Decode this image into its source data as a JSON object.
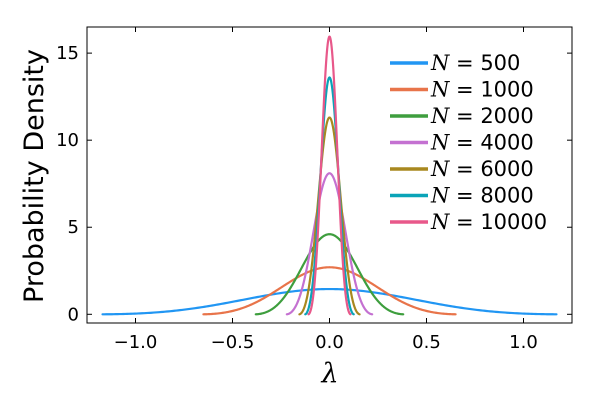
{
  "chart_data": {
    "type": "line",
    "title": "",
    "xlabel": "λ",
    "ylabel": "Probability Density",
    "xlim": [
      -1.25,
      1.25
    ],
    "ylim": [
      -0.5,
      16.5
    ],
    "x_ticks": [
      -1.0,
      -0.5,
      0.0,
      0.5,
      1.0
    ],
    "x_tick_labels": [
      "−1.0",
      "−0.5",
      "0.0",
      "0.5",
      "1.0"
    ],
    "y_ticks": [
      0,
      5,
      10,
      15
    ],
    "y_tick_labels": [
      "0",
      "5",
      "10",
      "15"
    ],
    "grid": false,
    "legend_position": "top-right",
    "series": [
      {
        "name_symbol": "N",
        "name_value": "500",
        "color": "#2196f3",
        "peak": 1.45,
        "half_range": 1.17
      },
      {
        "name_symbol": "N",
        "name_value": "1000",
        "color": "#e8744a",
        "peak": 2.7,
        "half_range": 0.65
      },
      {
        "name_symbol": "N",
        "name_value": "2000",
        "color": "#3e9e3e",
        "peak": 4.6,
        "half_range": 0.38
      },
      {
        "name_symbol": "N",
        "name_value": "4000",
        "color": "#c471d1",
        "peak": 8.1,
        "half_range": 0.22
      },
      {
        "name_symbol": "N",
        "name_value": "6000",
        "color": "#a8881f",
        "peak": 11.3,
        "half_range": 0.155
      },
      {
        "name_symbol": "N",
        "name_value": "8000",
        "color": "#0aa4b8",
        "peak": 13.6,
        "half_range": 0.125
      },
      {
        "name_symbol": "N",
        "name_value": "10000",
        "color": "#e8588a",
        "peak": 15.95,
        "half_range": 0.108
      }
    ]
  }
}
